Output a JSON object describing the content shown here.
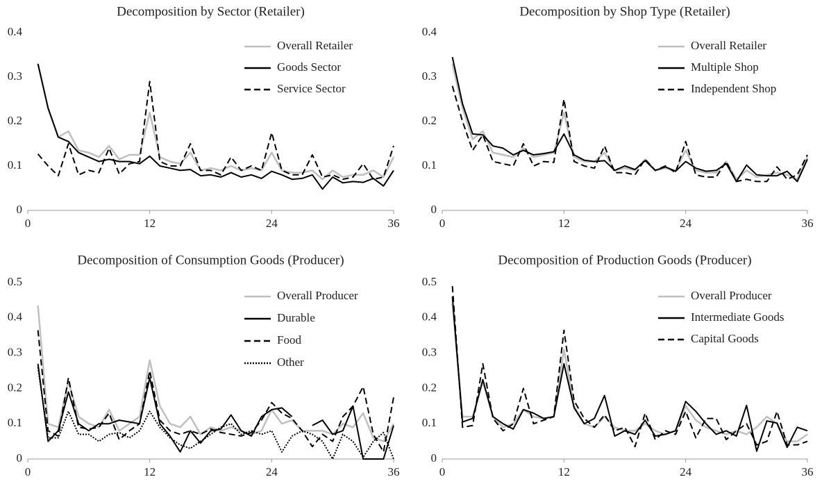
{
  "chart_data": [
    {
      "type": "line",
      "title": "Decomposition by Sector (Retailer)",
      "x": [
        1,
        2,
        3,
        4,
        5,
        6,
        7,
        8,
        9,
        10,
        11,
        12,
        13,
        14,
        15,
        16,
        17,
        18,
        19,
        20,
        21,
        22,
        23,
        24,
        25,
        26,
        27,
        28,
        29,
        30,
        31,
        32,
        33,
        34,
        35,
        36
      ],
      "xlim": [
        0,
        36
      ],
      "xticks": [
        0,
        12,
        24,
        36
      ],
      "ylim": [
        0,
        0.4
      ],
      "yticks": [
        0,
        0.1,
        0.2,
        0.3,
        0.4
      ],
      "legend": "top-right",
      "series": [
        {
          "name": "Overall Retailer",
          "color": "#bfbfbf",
          "dash": "solid",
          "values": [
            0.33,
            0.23,
            0.165,
            0.178,
            0.135,
            0.13,
            0.12,
            0.145,
            0.115,
            0.125,
            0.125,
            0.22,
            0.12,
            0.11,
            0.105,
            0.13,
            0.09,
            0.095,
            0.09,
            0.1,
            0.09,
            0.095,
            0.09,
            0.13,
            0.09,
            0.085,
            0.085,
            0.09,
            0.07,
            0.09,
            0.075,
            0.08,
            0.08,
            0.09,
            0.075,
            0.12
          ]
        },
        {
          "name": "Goods Sector",
          "color": "#000000",
          "dash": "solid",
          "values": [
            0.33,
            0.23,
            0.165,
            0.155,
            0.13,
            0.12,
            0.11,
            0.115,
            0.11,
            0.11,
            0.105,
            0.122,
            0.1,
            0.095,
            0.09,
            0.092,
            0.078,
            0.08,
            0.075,
            0.085,
            0.075,
            0.08,
            0.072,
            0.088,
            0.08,
            0.07,
            0.072,
            0.08,
            0.048,
            0.075,
            0.062,
            0.065,
            0.063,
            0.072,
            0.055,
            0.09
          ]
        },
        {
          "name": "Service Sector",
          "color": "#000000",
          "dash": "dashed",
          "values": [
            0.127,
            0.1,
            0.078,
            0.15,
            0.08,
            0.09,
            0.085,
            0.14,
            0.082,
            0.105,
            0.11,
            0.29,
            0.11,
            0.1,
            0.1,
            0.15,
            0.09,
            0.09,
            0.08,
            0.12,
            0.09,
            0.1,
            0.09,
            0.175,
            0.09,
            0.08,
            0.08,
            0.125,
            0.075,
            0.08,
            0.07,
            0.075,
            0.105,
            0.07,
            0.075,
            0.145
          ]
        }
      ]
    },
    {
      "type": "line",
      "title": "Decomposition by Shop Type (Retailer)",
      "x": [
        1,
        2,
        3,
        4,
        5,
        6,
        7,
        8,
        9,
        10,
        11,
        12,
        13,
        14,
        15,
        16,
        17,
        18,
        19,
        20,
        21,
        22,
        23,
        24,
        25,
        26,
        27,
        28,
        29,
        30,
        31,
        32,
        33,
        34,
        35,
        36
      ],
      "xlim": [
        0,
        36
      ],
      "xticks": [
        0,
        12,
        24,
        36
      ],
      "ylim": [
        0,
        0.4
      ],
      "yticks": [
        0,
        0.1,
        0.2,
        0.3,
        0.4
      ],
      "legend": "top-right",
      "series": [
        {
          "name": "Overall Retailer",
          "color": "#bfbfbf",
          "dash": "solid",
          "values": [
            0.33,
            0.23,
            0.16,
            0.178,
            0.13,
            0.125,
            0.12,
            0.14,
            0.12,
            0.125,
            0.13,
            0.22,
            0.12,
            0.11,
            0.11,
            0.13,
            0.09,
            0.095,
            0.09,
            0.115,
            0.09,
            0.095,
            0.09,
            0.135,
            0.09,
            0.085,
            0.085,
            0.11,
            0.07,
            0.09,
            0.075,
            0.08,
            0.085,
            0.08,
            0.07,
            0.12
          ]
        },
        {
          "name": "Multiple Shop",
          "color": "#000000",
          "dash": "solid",
          "values": [
            0.345,
            0.24,
            0.172,
            0.17,
            0.145,
            0.14,
            0.125,
            0.135,
            0.125,
            0.128,
            0.132,
            0.172,
            0.125,
            0.113,
            0.11,
            0.112,
            0.09,
            0.1,
            0.092,
            0.112,
            0.09,
            0.098,
            0.088,
            0.11,
            0.095,
            0.088,
            0.09,
            0.105,
            0.065,
            0.102,
            0.08,
            0.078,
            0.078,
            0.088,
            0.065,
            0.115
          ]
        },
        {
          "name": "Independent Shop",
          "color": "#000000",
          "dash": "dashed",
          "values": [
            0.28,
            0.2,
            0.135,
            0.17,
            0.11,
            0.105,
            0.1,
            0.15,
            0.1,
            0.11,
            0.108,
            0.25,
            0.11,
            0.1,
            0.095,
            0.145,
            0.085,
            0.085,
            0.08,
            0.115,
            0.09,
            0.1,
            0.085,
            0.155,
            0.08,
            0.075,
            0.075,
            0.11,
            0.065,
            0.07,
            0.065,
            0.065,
            0.098,
            0.07,
            0.08,
            0.125
          ]
        }
      ]
    },
    {
      "type": "line",
      "title": "Decomposition of Consumption Goods (Producer)",
      "x": [
        1,
        2,
        3,
        4,
        5,
        6,
        7,
        8,
        9,
        10,
        11,
        12,
        13,
        14,
        15,
        16,
        17,
        18,
        19,
        20,
        21,
        22,
        23,
        24,
        25,
        26,
        27,
        28,
        29,
        30,
        31,
        32,
        33,
        34,
        35,
        36
      ],
      "xlim": [
        0,
        36
      ],
      "xticks": [
        0,
        12,
        24,
        36
      ],
      "ylim": [
        0,
        0.5
      ],
      "yticks": [
        0,
        0.1,
        0.2,
        0.3,
        0.4,
        0.5
      ],
      "legend": "top-right",
      "series": [
        {
          "name": "Overall Producer",
          "color": "#bfbfbf",
          "dash": "solid",
          "values": [
            0.435,
            0.1,
            0.09,
            0.22,
            0.12,
            0.1,
            0.09,
            0.14,
            0.08,
            0.1,
            0.12,
            0.28,
            0.15,
            0.1,
            0.09,
            0.12,
            0.07,
            0.09,
            0.08,
            0.09,
            0.08,
            0.07,
            0.08,
            0.14,
            0.1,
            0.11,
            0.08,
            0.08,
            0.08,
            0.07,
            0.1,
            0.09,
            0.13,
            0.06,
            0.05,
            0.1
          ]
        },
        {
          "name": "Durable",
          "color": "#000000",
          "dash": "solid",
          "values": [
            0.27,
            0.05,
            0.08,
            0.19,
            0.1,
            0.08,
            0.1,
            0.1,
            0.11,
            0.105,
            0.1,
            0.23,
            0.1,
            0.065,
            0.02,
            0.08,
            0.045,
            0.08,
            0.085,
            0.125,
            0.08,
            0.065,
            0.12,
            0.14,
            0.145,
            0.12,
            null,
            0.095,
            0.11,
            0.07,
            0.08,
            0.15,
            0,
            0,
            0,
            0.095
          ]
        },
        {
          "name": "Food",
          "color": "#000000",
          "dash": "dashed",
          "values": [
            0.365,
            0.08,
            0.065,
            0.23,
            0.09,
            0.085,
            0.09,
            0.13,
            0.055,
            0.08,
            0.1,
            0.25,
            0.11,
            0.08,
            0.07,
            0.08,
            0.07,
            0.085,
            0.075,
            0.07,
            0.065,
            0.075,
            0.11,
            0.16,
            0.13,
            0.115,
            0.08,
            0.035,
            0.07,
            0.05,
            0.12,
            0.15,
            0.205,
            0.07,
            0.02,
            0.175
          ]
        },
        {
          "name": "Other",
          "color": "#000000",
          "dash": "dotted",
          "values": [
            0.26,
            0.06,
            0.06,
            0.135,
            0.07,
            0.07,
            0.05,
            0.07,
            0.075,
            0.06,
            0.08,
            0.135,
            0.09,
            0.06,
            0.04,
            0.03,
            0.05,
            0.07,
            0.09,
            0.1,
            0.07,
            0.08,
            0.07,
            0.08,
            0.02,
            0.065,
            0.08,
            0.07,
            0.05,
            0,
            0.07,
            0.05,
            0.005,
            0.05,
            0.075,
            0
          ]
        }
      ]
    },
    {
      "type": "line",
      "title": "Decomposition of Production Goods (Producer)",
      "x": [
        1,
        2,
        3,
        4,
        5,
        6,
        7,
        8,
        9,
        10,
        11,
        12,
        13,
        14,
        15,
        16,
        17,
        18,
        19,
        20,
        21,
        22,
        23,
        24,
        25,
        26,
        27,
        28,
        29,
        30,
        31,
        32,
        33,
        34,
        35,
        36
      ],
      "xlim": [
        0,
        36
      ],
      "xticks": [
        0,
        12,
        24,
        36
      ],
      "ylim": [
        0,
        0.5
      ],
      "yticks": [
        0,
        0.1,
        0.2,
        0.3,
        0.4,
        0.5
      ],
      "legend": "top-right",
      "series": [
        {
          "name": "Overall Producer",
          "color": "#bfbfbf",
          "dash": "solid",
          "values": [
            0.44,
            0.12,
            0.12,
            0.22,
            0.12,
            0.09,
            0.1,
            0.14,
            0.12,
            0.115,
            0.12,
            0.31,
            0.15,
            0.1,
            0.09,
            0.12,
            0.09,
            0.08,
            0.08,
            0.1,
            0.08,
            0.07,
            0.08,
            0.15,
            0.11,
            0.09,
            0.08,
            0.07,
            0.08,
            0.07,
            0.09,
            0.12,
            0.1,
            0.05,
            0.05,
            0.07
          ]
        },
        {
          "name": "Intermediate Goods",
          "color": "#000000",
          "dash": "solid",
          "values": [
            0.46,
            0.105,
            0.115,
            0.225,
            0.12,
            0.1,
            0.085,
            0.14,
            0.13,
            0.115,
            0.12,
            0.27,
            0.145,
            0.1,
            0.115,
            0.18,
            0.065,
            0.08,
            0.07,
            0.11,
            0.065,
            0.07,
            0.08,
            0.163,
            0.135,
            0.1,
            0.07,
            0.08,
            0.065,
            0.152,
            0.022,
            0.108,
            0.102,
            0.033,
            0.09,
            0.08
          ]
        },
        {
          "name": "Capital Goods",
          "color": "#000000",
          "dash": "dashed",
          "values": [
            0.49,
            0.09,
            0.095,
            0.27,
            0.115,
            0.08,
            0.1,
            0.2,
            0.1,
            0.11,
            0.12,
            0.365,
            0.165,
            0.115,
            0.09,
            0.125,
            0.08,
            0.09,
            0.035,
            0.13,
            0.055,
            0.08,
            0.07,
            0.135,
            0.06,
            0.115,
            0.115,
            0.055,
            0.08,
            0.1,
            0.04,
            0.05,
            0.135,
            0.04,
            0.04,
            0.05
          ]
        }
      ]
    }
  ]
}
